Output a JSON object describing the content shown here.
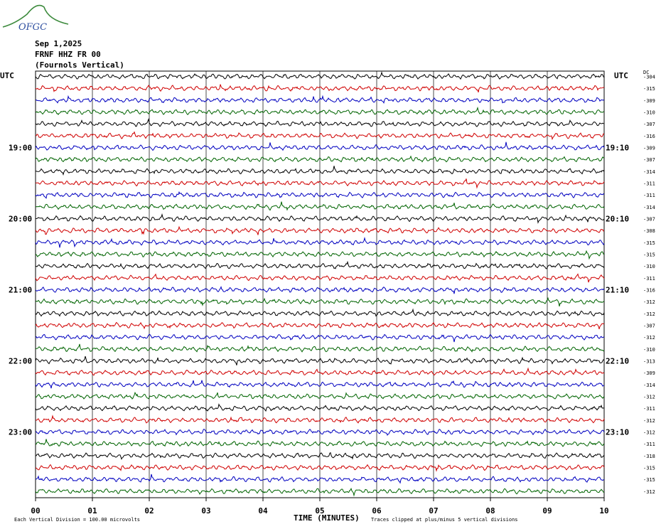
{
  "logo": {
    "text": "OFGC"
  },
  "header": {
    "date": "Sep 1,2025",
    "station": "FRNF HHZ FR 00",
    "description": "(Fournols Vertical)"
  },
  "chart_data": {
    "type": "helicorder",
    "left_label": "UTC",
    "right_label": "UTC",
    "dc_header": "DC",
    "xlabel": "TIME (MINUTES)",
    "xticks": [
      "00",
      "01",
      "02",
      "03",
      "04",
      "05",
      "06",
      "07",
      "08",
      "09",
      "10"
    ],
    "x_range_minutes": [
      0,
      10
    ],
    "left_hour_labels": [
      {
        "text": "19:00",
        "row": 6
      },
      {
        "text": "20:00",
        "row": 12
      },
      {
        "text": "21:00",
        "row": 18
      },
      {
        "text": "22:00",
        "row": 24
      },
      {
        "text": "23:00",
        "row": 30
      }
    ],
    "right_hour_labels": [
      {
        "text": "19:10",
        "row": 6
      },
      {
        "text": "20:10",
        "row": 12
      },
      {
        "text": "21:10",
        "row": 18
      },
      {
        "text": "22:10",
        "row": 24
      },
      {
        "text": "23:10",
        "row": 30
      }
    ],
    "dc_values": [
      -304,
      -315,
      -309,
      -310,
      -307,
      -316,
      -309,
      -307,
      -314,
      -311,
      -311,
      -314,
      -307,
      -308,
      -315,
      -315,
      -310,
      -311,
      -316,
      -312,
      -312,
      -307,
      -312,
      -310,
      -313,
      -309,
      -314,
      -312,
      -311,
      -312,
      -312,
      -311,
      -318,
      -315,
      -315,
      -312
    ],
    "trace_colors": [
      "#000000",
      "#d00000",
      "#0000c0",
      "#006400"
    ],
    "footnote_left": "Each Vertical Division =  100.00 microvolts",
    "footnote_right": "Traces clipped at plus/minus 5 vertical divisions",
    "grid": true
  }
}
